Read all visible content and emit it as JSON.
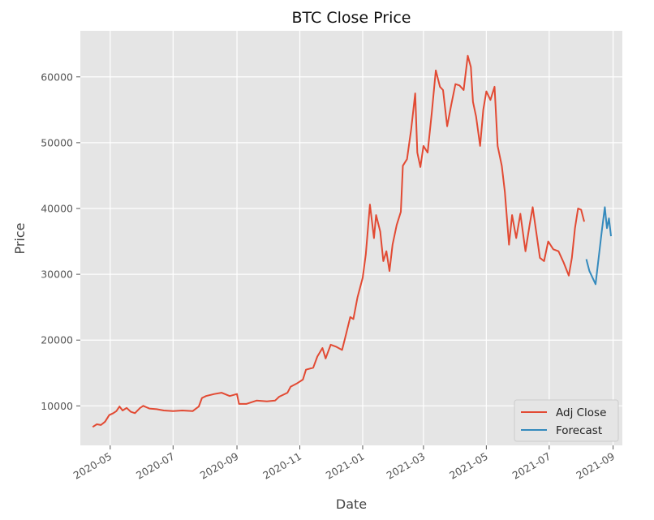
{
  "chart_data": {
    "type": "line",
    "title": "BTC Close Price",
    "xlabel": "Date",
    "ylabel": "Price",
    "ylim": [
      4000,
      67000
    ],
    "xlim": [
      "2020-04-02",
      "2021-09-10"
    ],
    "grid": true,
    "legend_position": "lower-right",
    "x_ticks": [
      "2020-05",
      "2020-07",
      "2020-09",
      "2020-11",
      "2021-01",
      "2021-03",
      "2021-05",
      "2021-07",
      "2021-09"
    ],
    "y_ticks": [
      10000,
      20000,
      30000,
      40000,
      50000,
      60000
    ],
    "series": [
      {
        "name": "Adj Close",
        "color": "#E24A33",
        "points": [
          [
            "2020-04-14",
            6800
          ],
          [
            "2020-04-18",
            7200
          ],
          [
            "2020-04-22",
            7100
          ],
          [
            "2020-04-26",
            7600
          ],
          [
            "2020-04-30",
            8600
          ],
          [
            "2020-05-04",
            8900
          ],
          [
            "2020-05-07",
            9200
          ],
          [
            "2020-05-10",
            9900
          ],
          [
            "2020-05-13",
            9300
          ],
          [
            "2020-05-17",
            9700
          ],
          [
            "2020-05-21",
            9100
          ],
          [
            "2020-05-25",
            8900
          ],
          [
            "2020-05-30",
            9700
          ],
          [
            "2020-06-02",
            10000
          ],
          [
            "2020-06-08",
            9600
          ],
          [
            "2020-06-15",
            9500
          ],
          [
            "2020-06-22",
            9300
          ],
          [
            "2020-07-01",
            9200
          ],
          [
            "2020-07-10",
            9300
          ],
          [
            "2020-07-20",
            9200
          ],
          [
            "2020-07-26",
            9900
          ],
          [
            "2020-07-29",
            11200
          ],
          [
            "2020-08-02",
            11500
          ],
          [
            "2020-08-10",
            11800
          ],
          [
            "2020-08-17",
            12000
          ],
          [
            "2020-08-25",
            11500
          ],
          [
            "2020-09-01",
            11800
          ],
          [
            "2020-09-03",
            10300
          ],
          [
            "2020-09-10",
            10300
          ],
          [
            "2020-09-20",
            10800
          ],
          [
            "2020-09-30",
            10700
          ],
          [
            "2020-10-08",
            10800
          ],
          [
            "2020-10-12",
            11400
          ],
          [
            "2020-10-20",
            12000
          ],
          [
            "2020-10-23",
            12900
          ],
          [
            "2020-10-29",
            13400
          ],
          [
            "2020-11-04",
            14000
          ],
          [
            "2020-11-07",
            15500
          ],
          [
            "2020-11-14",
            15800
          ],
          [
            "2020-11-18",
            17500
          ],
          [
            "2020-11-23",
            18800
          ],
          [
            "2020-11-26",
            17200
          ],
          [
            "2020-12-01",
            19300
          ],
          [
            "2020-12-06",
            19000
          ],
          [
            "2020-12-12",
            18500
          ],
          [
            "2020-12-16",
            21000
          ],
          [
            "2020-12-20",
            23500
          ],
          [
            "2020-12-23",
            23200
          ],
          [
            "2020-12-27",
            26500
          ],
          [
            "2021-01-01",
            29500
          ],
          [
            "2021-01-04",
            33000
          ],
          [
            "2021-01-08",
            40600
          ],
          [
            "2021-01-12",
            35500
          ],
          [
            "2021-01-14",
            39000
          ],
          [
            "2021-01-18",
            36500
          ],
          [
            "2021-01-21",
            32000
          ],
          [
            "2021-01-24",
            33500
          ],
          [
            "2021-01-27",
            30500
          ],
          [
            "2021-01-30",
            34500
          ],
          [
            "2021-02-03",
            37500
          ],
          [
            "2021-02-07",
            39500
          ],
          [
            "2021-02-09",
            46500
          ],
          [
            "2021-02-13",
            47500
          ],
          [
            "2021-02-17",
            52000
          ],
          [
            "2021-02-21",
            57500
          ],
          [
            "2021-02-23",
            48500
          ],
          [
            "2021-02-26",
            46300
          ],
          [
            "2021-03-01",
            49500
          ],
          [
            "2021-03-05",
            48500
          ],
          [
            "2021-03-09",
            54500
          ],
          [
            "2021-03-13",
            61000
          ],
          [
            "2021-03-17",
            58500
          ],
          [
            "2021-03-20",
            58000
          ],
          [
            "2021-03-24",
            52500
          ],
          [
            "2021-03-28",
            55800
          ],
          [
            "2021-04-01",
            58900
          ],
          [
            "2021-04-05",
            58700
          ],
          [
            "2021-04-09",
            58000
          ],
          [
            "2021-04-13",
            63200
          ],
          [
            "2021-04-16",
            61500
          ],
          [
            "2021-04-18",
            56200
          ],
          [
            "2021-04-21",
            54000
          ],
          [
            "2021-04-25",
            49500
          ],
          [
            "2021-04-28",
            55000
          ],
          [
            "2021-05-01",
            57800
          ],
          [
            "2021-05-05",
            56500
          ],
          [
            "2021-05-09",
            58500
          ],
          [
            "2021-05-12",
            49500
          ],
          [
            "2021-05-16",
            46500
          ],
          [
            "2021-05-19",
            42500
          ],
          [
            "2021-05-23",
            34500
          ],
          [
            "2021-05-26",
            39000
          ],
          [
            "2021-05-30",
            35500
          ],
          [
            "2021-06-03",
            39200
          ],
          [
            "2021-06-08",
            33500
          ],
          [
            "2021-06-12",
            37500
          ],
          [
            "2021-06-15",
            40200
          ],
          [
            "2021-06-19",
            35800
          ],
          [
            "2021-06-22",
            32500
          ],
          [
            "2021-06-26",
            32000
          ],
          [
            "2021-06-30",
            35000
          ],
          [
            "2021-07-05",
            33800
          ],
          [
            "2021-07-10",
            33500
          ],
          [
            "2021-07-15",
            31800
          ],
          [
            "2021-07-20",
            29800
          ],
          [
            "2021-07-23",
            32500
          ],
          [
            "2021-07-26",
            37000
          ],
          [
            "2021-07-29",
            40000
          ],
          [
            "2021-08-01",
            39800
          ],
          [
            "2021-08-04",
            38000
          ]
        ]
      },
      {
        "name": "Forecast",
        "color": "#348ABD",
        "points": [
          [
            "2021-08-06",
            32300
          ],
          [
            "2021-08-09",
            30500
          ],
          [
            "2021-08-12",
            29500
          ],
          [
            "2021-08-15",
            28500
          ],
          [
            "2021-08-18",
            32500
          ],
          [
            "2021-08-21",
            36500
          ],
          [
            "2021-08-24",
            40200
          ],
          [
            "2021-08-26",
            37000
          ],
          [
            "2021-08-28",
            38500
          ],
          [
            "2021-08-30",
            35800
          ]
        ]
      }
    ]
  }
}
